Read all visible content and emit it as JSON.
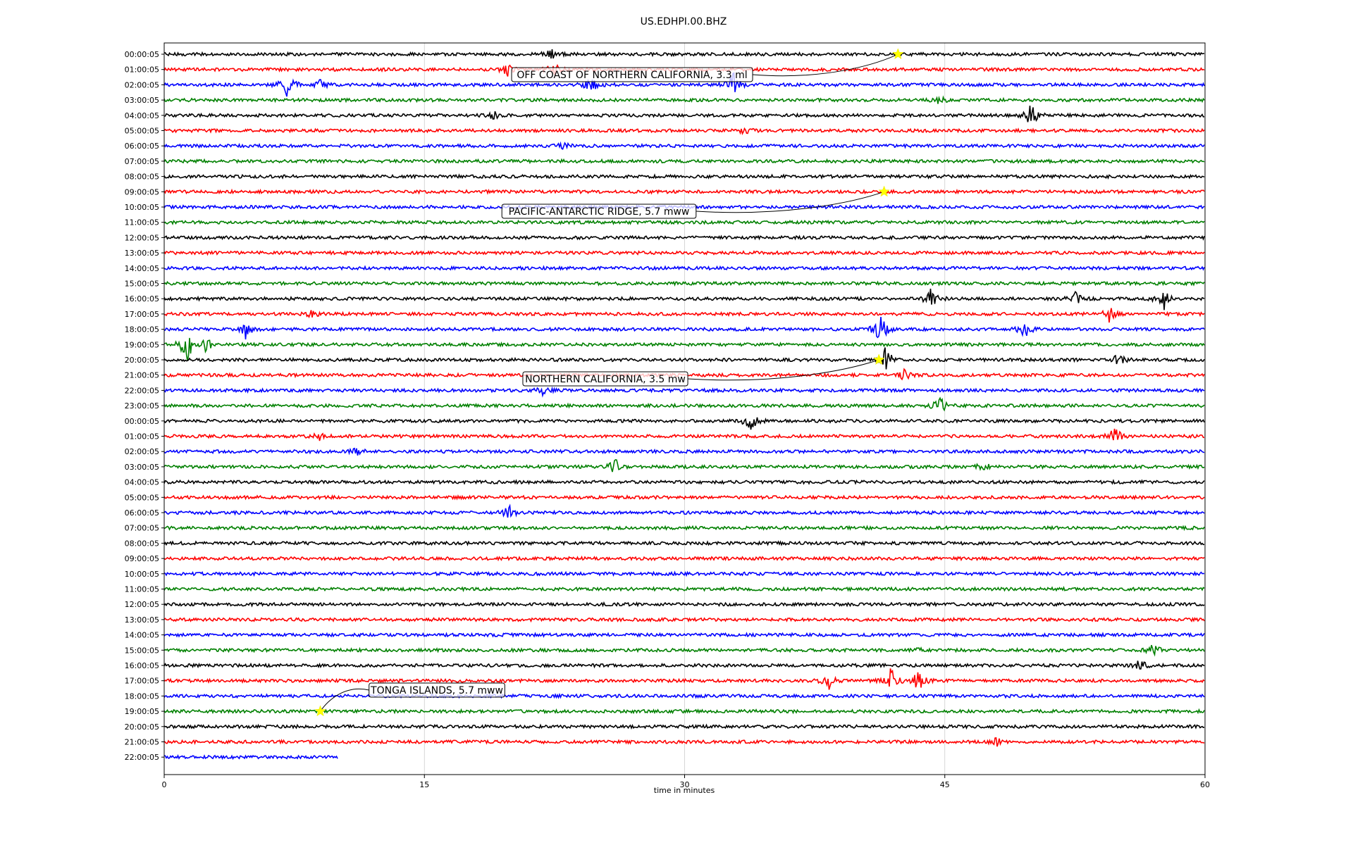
{
  "chart_data": {
    "type": "line",
    "title": "US.EDHPI.00.BHZ",
    "xlabel": "time in minutes",
    "ylabel": "",
    "xlim": [
      0,
      60
    ],
    "xticks": [
      0,
      15,
      30,
      45,
      60
    ],
    "grid_x": true,
    "trace_colors": [
      "#000000",
      "#ff0000",
      "#0000ff",
      "#008000"
    ],
    "row_labels": [
      "00:00:05",
      "01:00:05",
      "02:00:05",
      "03:00:05",
      "04:00:05",
      "05:00:05",
      "06:00:05",
      "07:00:05",
      "08:00:05",
      "09:00:05",
      "10:00:05",
      "11:00:05",
      "12:00:05",
      "13:00:05",
      "14:00:05",
      "15:00:05",
      "16:00:05",
      "17:00:05",
      "18:00:05",
      "19:00:05",
      "20:00:05",
      "21:00:05",
      "22:00:05",
      "23:00:05",
      "00:00:05",
      "01:00:05",
      "02:00:05",
      "03:00:05",
      "04:00:05",
      "05:00:05",
      "06:00:05",
      "07:00:05",
      "08:00:05",
      "09:00:05",
      "10:00:05",
      "11:00:05",
      "12:00:05",
      "13:00:05",
      "14:00:05",
      "15:00:05",
      "16:00:05",
      "17:00:05",
      "18:00:05",
      "19:00:05",
      "20:00:05",
      "21:00:05",
      "22:00:05"
    ],
    "last_row_end_minute": 10,
    "bursts": [
      {
        "row": 0,
        "minute": 22.3,
        "amp": 0.5
      },
      {
        "row": 1,
        "minute": 19.8,
        "amp": 0.6
      },
      {
        "row": 1,
        "minute": 22.4,
        "amp": 0.8
      },
      {
        "row": 2,
        "minute": 7.1,
        "amp": 1.4
      },
      {
        "row": 2,
        "minute": 9.0,
        "amp": 0.5
      },
      {
        "row": 2,
        "minute": 24.6,
        "amp": 0.9
      },
      {
        "row": 2,
        "minute": 32.8,
        "amp": 1.3
      },
      {
        "row": 3,
        "minute": 44.7,
        "amp": 0.4
      },
      {
        "row": 4,
        "minute": 18.9,
        "amp": 0.5
      },
      {
        "row": 4,
        "minute": 50.0,
        "amp": 1.4
      },
      {
        "row": 5,
        "minute": 33.5,
        "amp": 0.3
      },
      {
        "row": 6,
        "minute": 23.0,
        "amp": 0.3
      },
      {
        "row": 16,
        "minute": 44.2,
        "amp": 1.0
      },
      {
        "row": 16,
        "minute": 52.6,
        "amp": 0.8
      },
      {
        "row": 16,
        "minute": 57.6,
        "amp": 1.3
      },
      {
        "row": 17,
        "minute": 8.5,
        "amp": 0.4
      },
      {
        "row": 17,
        "minute": 54.5,
        "amp": 0.8
      },
      {
        "row": 18,
        "minute": 4.7,
        "amp": 0.9
      },
      {
        "row": 18,
        "minute": 41.3,
        "amp": 1.6
      },
      {
        "row": 18,
        "minute": 49.6,
        "amp": 1.2
      },
      {
        "row": 19,
        "minute": 1.3,
        "amp": 1.8
      },
      {
        "row": 19,
        "minute": 2.4,
        "amp": 0.7
      },
      {
        "row": 20,
        "minute": 41.6,
        "amp": 1.3
      },
      {
        "row": 20,
        "minute": 55.0,
        "amp": 0.6
      },
      {
        "row": 21,
        "minute": 42.6,
        "amp": 0.6
      },
      {
        "row": 22,
        "minute": 21.8,
        "amp": 0.5
      },
      {
        "row": 23,
        "minute": 44.7,
        "amp": 0.9
      },
      {
        "row": 24,
        "minute": 33.8,
        "amp": 1.1
      },
      {
        "row": 25,
        "minute": 54.8,
        "amp": 1.0
      },
      {
        "row": 25,
        "minute": 8.9,
        "amp": 0.4
      },
      {
        "row": 26,
        "minute": 11.1,
        "amp": 0.4
      },
      {
        "row": 27,
        "minute": 26.0,
        "amp": 0.8
      },
      {
        "row": 27,
        "minute": 47.2,
        "amp": 0.6
      },
      {
        "row": 30,
        "minute": 19.9,
        "amp": 0.7
      },
      {
        "row": 39,
        "minute": 57.0,
        "amp": 0.6
      },
      {
        "row": 39,
        "minute": 43.5,
        "amp": 0.4
      },
      {
        "row": 40,
        "minute": 56.2,
        "amp": 0.6
      },
      {
        "row": 41,
        "minute": 38.3,
        "amp": 0.9
      },
      {
        "row": 41,
        "minute": 41.9,
        "amp": 1.3
      },
      {
        "row": 41,
        "minute": 43.5,
        "amp": 1.1
      },
      {
        "row": 45,
        "minute": 48.0,
        "amp": 0.4
      }
    ],
    "annotations": [
      {
        "text": "OFF COAST OF NORTHERN CALIFORNIA, 3.3 ml",
        "row": 0,
        "minute": 42.3
      },
      {
        "text": "PACIFIC-ANTARCTIC RIDGE, 5.7 mww",
        "row": 9,
        "minute": 41.5
      },
      {
        "text": "NORTHERN CALIFORNIA, 3.5 mw",
        "row": 20,
        "minute": 41.2
      },
      {
        "text": "TONGA ISLANDS, 5.7 mww",
        "row": 43,
        "minute": 9.0
      }
    ]
  }
}
